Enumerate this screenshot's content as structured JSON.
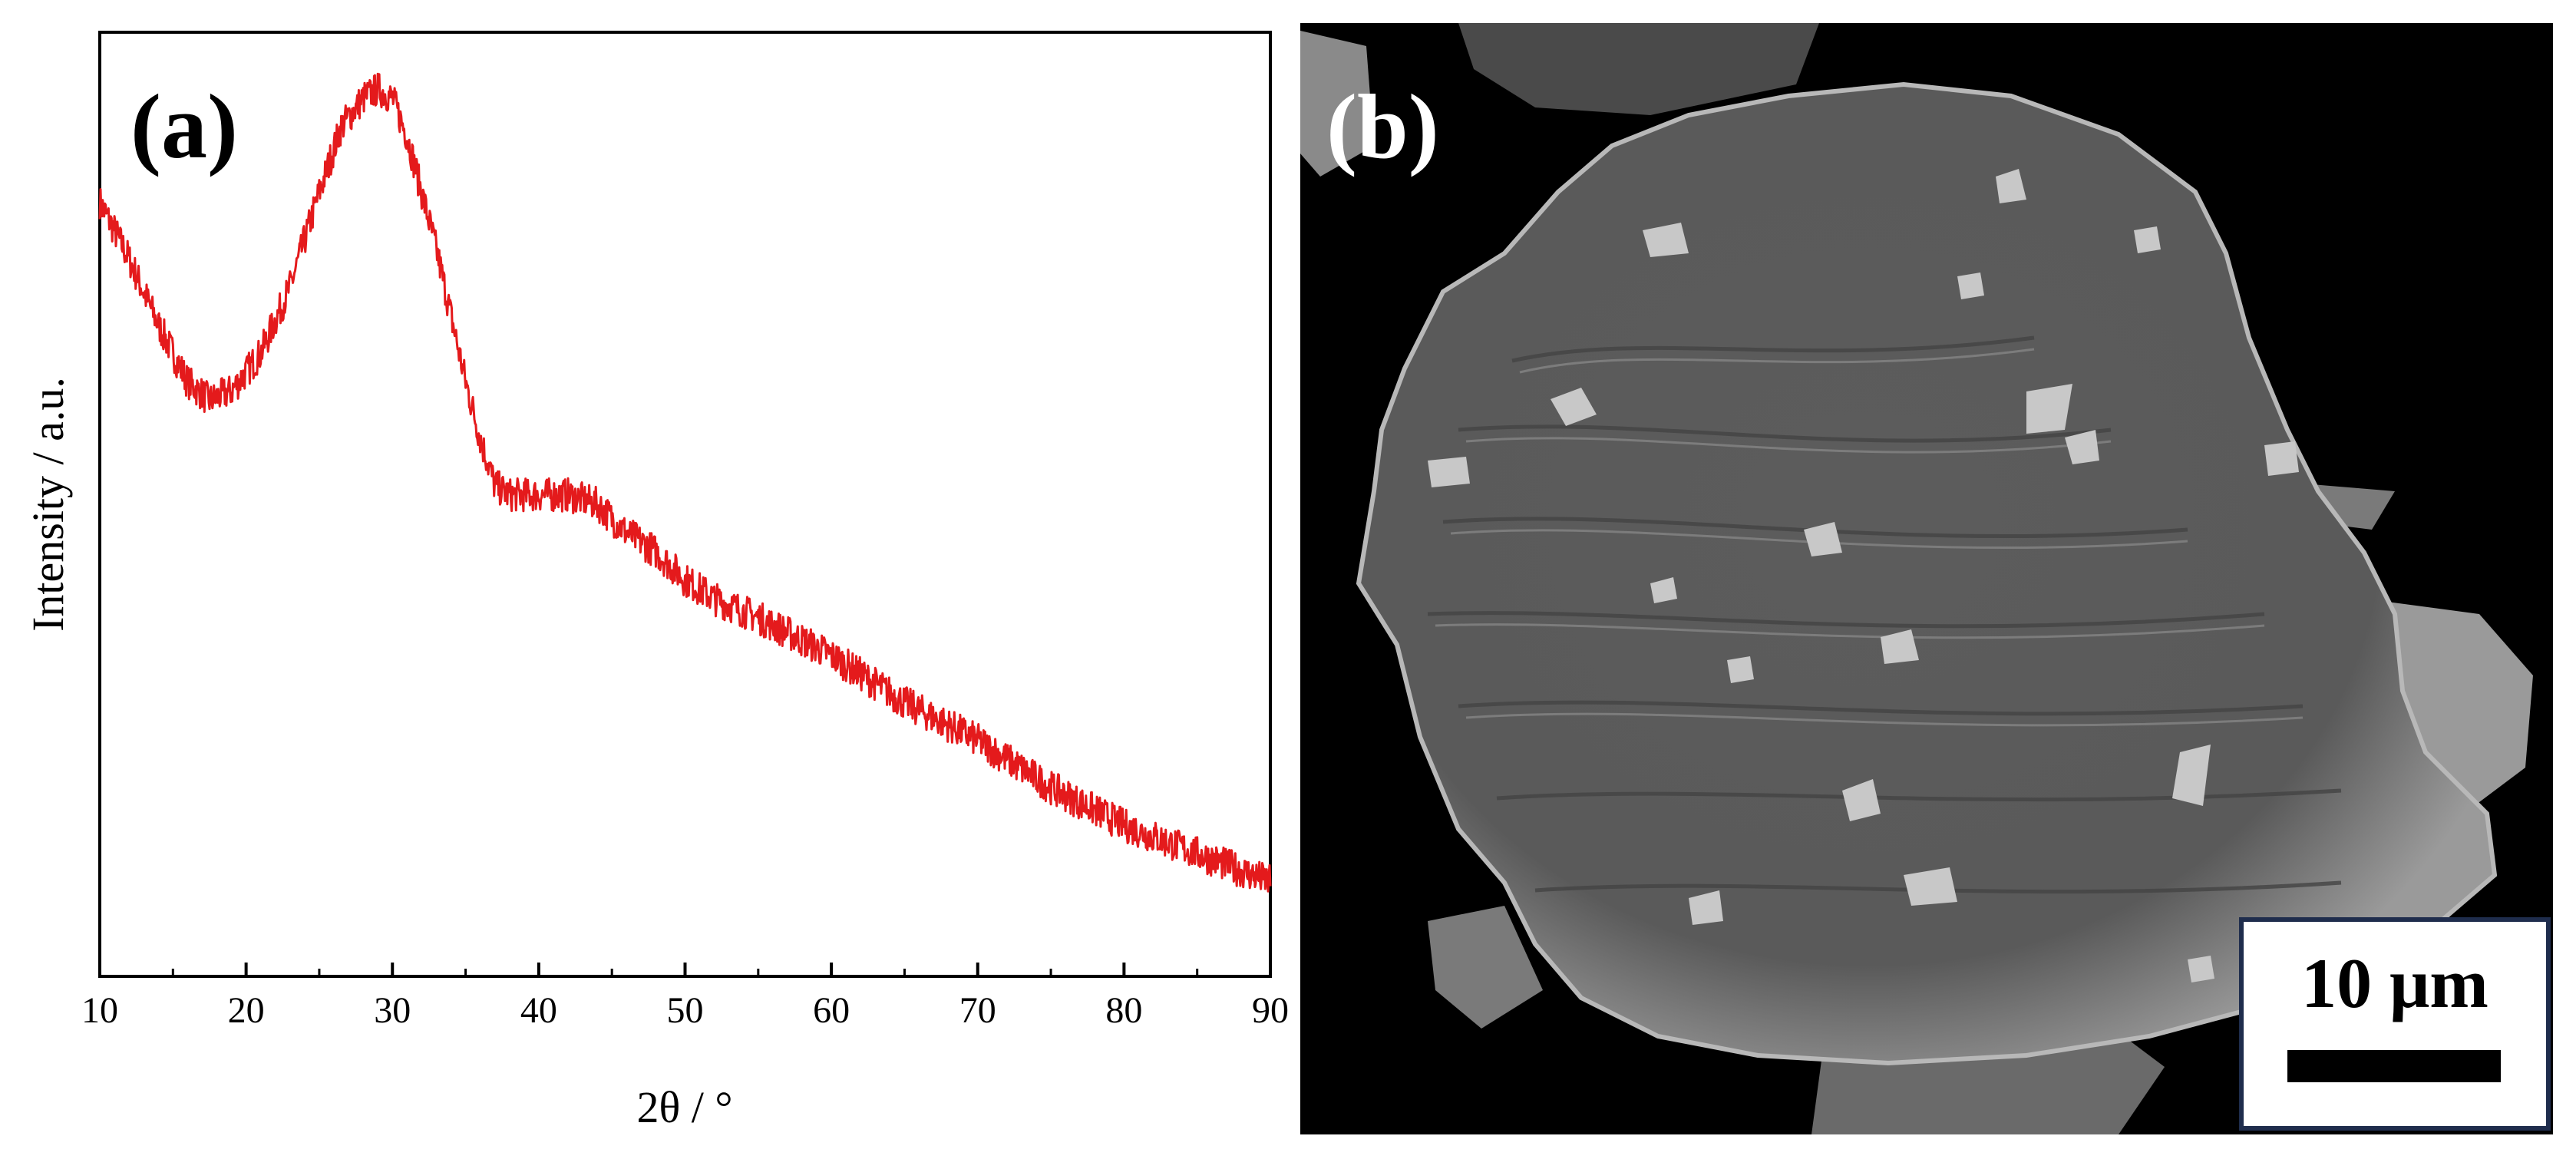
{
  "panels": {
    "a_label": "(a)",
    "b_label": "(b)"
  },
  "chart_data": {
    "type": "line",
    "title": "",
    "xlabel": "2θ / °",
    "ylabel": "Intensity / a.u.",
    "xlim": [
      10,
      90
    ],
    "ylim": [
      0,
      1
    ],
    "xticks": [
      10,
      20,
      30,
      40,
      50,
      60,
      70,
      80,
      90
    ],
    "xtick_labels": [
      "10",
      "20",
      "30",
      "40",
      "50",
      "60",
      "70",
      "80",
      "90"
    ],
    "y_ticks_shown": false,
    "grid": false,
    "legend": "none",
    "series": [
      {
        "color": "#e41a1c",
        "x": [
          10,
          12,
          14,
          16,
          17.5,
          19,
          21,
          23,
          25,
          26.5,
          28,
          29,
          30,
          31,
          32,
          33,
          34,
          35,
          36,
          37,
          38,
          39,
          40,
          42,
          44,
          46,
          48,
          50,
          52,
          55,
          60,
          65,
          70,
          75,
          80,
          85,
          90
        ],
        "y": [
          0.82,
          0.76,
          0.69,
          0.63,
          0.61,
          0.62,
          0.66,
          0.73,
          0.83,
          0.9,
          0.93,
          0.94,
          0.93,
          0.89,
          0.83,
          0.77,
          0.7,
          0.63,
          0.57,
          0.52,
          0.51,
          0.51,
          0.51,
          0.51,
          0.5,
          0.47,
          0.45,
          0.42,
          0.4,
          0.38,
          0.34,
          0.29,
          0.25,
          0.2,
          0.16,
          0.13,
          0.1
        ],
        "noise": 0.018
      }
    ]
  },
  "sem_image": {
    "scale_bar_label": "10 μm",
    "background_color": "#000000",
    "particle_color": "#6f6f6f"
  }
}
